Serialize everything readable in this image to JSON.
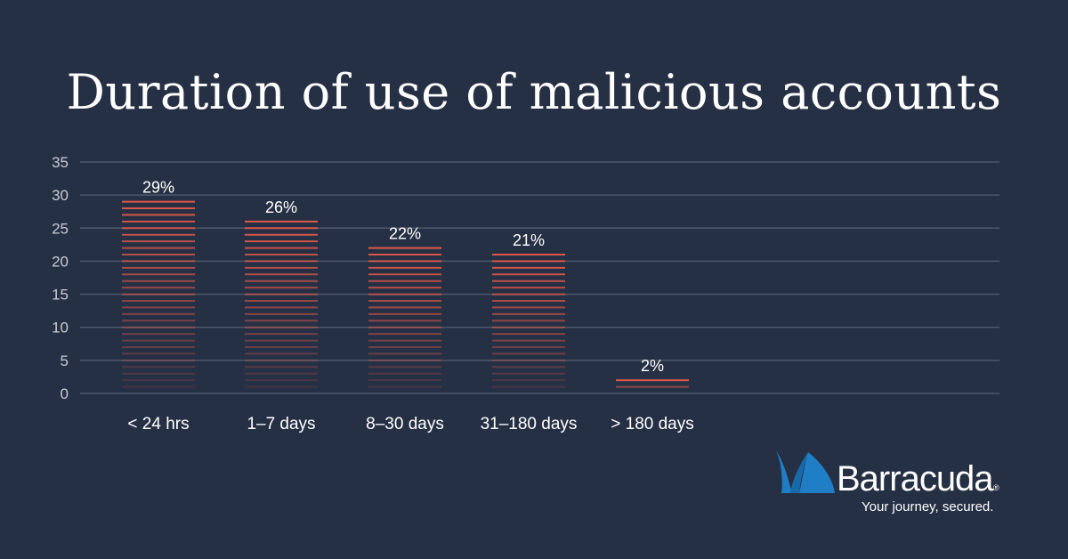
{
  "title": "Duration of use of malicious accounts",
  "colors": {
    "background": "#263044",
    "bar_stripe": "#e0584a",
    "grid": "#4d576a",
    "tick_text": "#c7ccd6",
    "logo_blue": "#1f7ec6"
  },
  "chart_data": {
    "type": "bar",
    "categories": [
      "< 24 hrs",
      "1–7 days",
      "8–30 days",
      "31–180 days",
      "> 180 days"
    ],
    "values": [
      29,
      26,
      22,
      21,
      2
    ],
    "data_labels": [
      "29%",
      "26%",
      "22%",
      "21%",
      "2%"
    ],
    "ylim": [
      0,
      35
    ],
    "yticks": [
      0,
      5,
      10,
      15,
      20,
      25,
      30,
      35
    ],
    "grid": true,
    "legend": "none",
    "bar_style": "horizontal stripes, fading toward baseline"
  },
  "logo": {
    "brand": "Barracuda",
    "registered": "®",
    "tagline": "Your journey, secured."
  }
}
